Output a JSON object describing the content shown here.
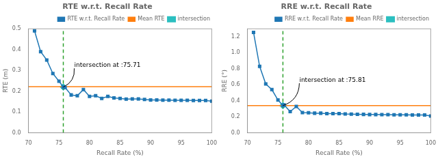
{
  "chart_data": [
    {
      "type": "line",
      "title": "RTE w.r.t. Recall Rate",
      "x_label": "Recall Rate (%)",
      "y_label": "RTE (m)",
      "x": [
        71,
        72,
        73,
        74,
        75,
        75.71,
        76,
        77,
        78,
        79,
        80,
        81,
        82,
        83,
        84,
        85,
        86,
        87,
        88,
        89,
        90,
        91,
        92,
        93,
        94,
        95,
        96,
        97,
        98,
        99,
        100
      ],
      "series": [
        {
          "name": "RTE w.r.t. Recall Rate",
          "color": "#1f77b4",
          "marker": "square",
          "line_style": "solid",
          "values": [
            0.49,
            0.39,
            0.35,
            0.285,
            0.248,
            0.22,
            0.218,
            0.182,
            0.178,
            0.208,
            0.175,
            0.178,
            0.165,
            0.175,
            0.168,
            0.165,
            0.162,
            0.163,
            0.163,
            0.16,
            0.158,
            0.158,
            0.157,
            0.157,
            0.156,
            0.156,
            0.156,
            0.155,
            0.155,
            0.155,
            0.152
          ]
        }
      ],
      "reference_lines": [
        {
          "name": "Mean RTE",
          "axis": "y",
          "value": 0.222,
          "color": "#ff7f0e",
          "line_style": "solid"
        },
        {
          "axis": "x",
          "value": 75.71,
          "color": "#2ca02c",
          "line_style": "dashed"
        }
      ],
      "points": [
        {
          "name": "intersection",
          "x": 75.71,
          "y": 0.22,
          "color": "#2bbfc0",
          "marker": "diamond"
        }
      ],
      "annotations": [
        {
          "text": "intersection at :75.71",
          "x": 75.71,
          "y": 0.22,
          "text_x": 77.5,
          "text_y": 0.31
        }
      ],
      "xlim": [
        70,
        100
      ],
      "ylim": [
        0.0,
        0.5
      ],
      "xticks": [
        70,
        75,
        80,
        85,
        90,
        95,
        100
      ],
      "yticks": [
        {
          "value": 0.0,
          "label": "0.0"
        },
        0.1,
        0.2,
        0.3,
        0.4,
        0.5
      ],
      "grid": false,
      "legend": "upper right"
    },
    {
      "type": "line",
      "title": "RRE w.r.t. Recall Rate",
      "x_label": "Recall Rate (%)",
      "y_label": "RRE (°)",
      "x": [
        71,
        72,
        73,
        74,
        75,
        75.81,
        76,
        77,
        78,
        79,
        80,
        81,
        82,
        83,
        84,
        85,
        86,
        87,
        88,
        89,
        90,
        91,
        92,
        93,
        94,
        95,
        96,
        97,
        98,
        99,
        100
      ],
      "series": [
        {
          "name": "RRE w.r.t. Recall Rate",
          "color": "#1f77b4",
          "marker": "square",
          "line_style": "solid",
          "values": [
            1.255,
            0.83,
            0.61,
            0.54,
            0.41,
            0.34,
            0.348,
            0.265,
            0.33,
            0.252,
            0.25,
            0.245,
            0.245,
            0.24,
            0.24,
            0.24,
            0.235,
            0.233,
            0.232,
            0.23,
            0.228,
            0.228,
            0.227,
            0.226,
            0.225,
            0.225,
            0.224,
            0.223,
            0.222,
            0.222,
            0.21
          ]
        }
      ],
      "reference_lines": [
        {
          "name": "Mean RRE",
          "axis": "y",
          "value": 0.34,
          "color": "#ff7f0e",
          "line_style": "solid"
        },
        {
          "axis": "x",
          "value": 75.81,
          "color": "#2ca02c",
          "line_style": "dashed"
        }
      ],
      "points": [
        {
          "name": "intersection",
          "x": 75.81,
          "y": 0.34,
          "color": "#2bbfc0",
          "marker": "diamond"
        }
      ],
      "annotations": [
        {
          "text": "intersection at :75.81",
          "x": 75.81,
          "y": 0.34,
          "text_x": 78.5,
          "text_y": 0.62
        }
      ],
      "xlim": [
        70,
        100
      ],
      "ylim": [
        0.0,
        1.3
      ],
      "xticks": [
        70,
        75,
        80,
        85,
        90,
        95,
        100
      ],
      "yticks": [
        {
          "value": 0.0,
          "label": "0.0"
        },
        0.2,
        0.4,
        0.6,
        0.8,
        {
          "value": 1.0,
          "label": "1.0"
        },
        1.2
      ],
      "grid": false,
      "legend": "upper right"
    }
  ]
}
